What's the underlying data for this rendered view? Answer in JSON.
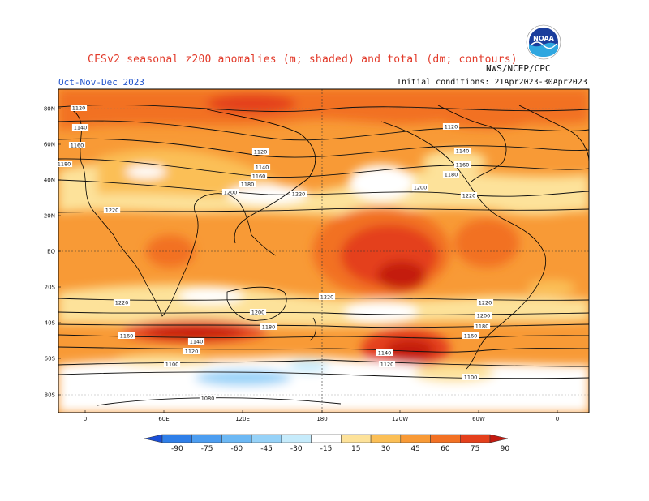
{
  "header": {
    "title": "CFSv2 seasonal z200 anomalies (m; shaded) and total (dm; contours)",
    "agency": "NWS/NCEP/CPC",
    "period": "Oct-Nov-Dec 2023",
    "initial_conditions": "Initial conditions: 21Apr2023-30Apr2023"
  },
  "logo": {
    "icon": "noaa-logo",
    "text": "NOAA"
  },
  "map": {
    "lat_labels": [
      "80N",
      "60N",
      "40N",
      "20N",
      "EQ",
      "20S",
      "40S",
      "60S",
      "80S"
    ],
    "lon_labels": [
      "0",
      "60E",
      "120E",
      "180",
      "120W",
      "60W",
      "0"
    ],
    "contour_labels": [
      "1120",
      "1140",
      "1160",
      "1180",
      "1120",
      "1140",
      "1160",
      "1180",
      "1200",
      "1220",
      "1200",
      "1220",
      "1200",
      "1220",
      "1120",
      "1140",
      "1160",
      "1180",
      "1220",
      "1220",
      "1200",
      "1180",
      "1160",
      "1140",
      "1120",
      "1100",
      "1080",
      "1220",
      "1200",
      "1180",
      "1160",
      "1140",
      "1120",
      "1100"
    ]
  },
  "colorbar": {
    "levels": [
      "-90",
      "-75",
      "-60",
      "-45",
      "-30",
      "-15",
      "15",
      "30",
      "45",
      "60",
      "75",
      "90"
    ],
    "colors": [
      "#1a4fd8",
      "#2f7fe8",
      "#4c9df0",
      "#6cb8f4",
      "#96d2f8",
      "#c6ebfb",
      "#ffffff",
      "#fde29a",
      "#fbbf56",
      "#f89a36",
      "#f27124",
      "#e4401c",
      "#c41a10"
    ]
  }
}
